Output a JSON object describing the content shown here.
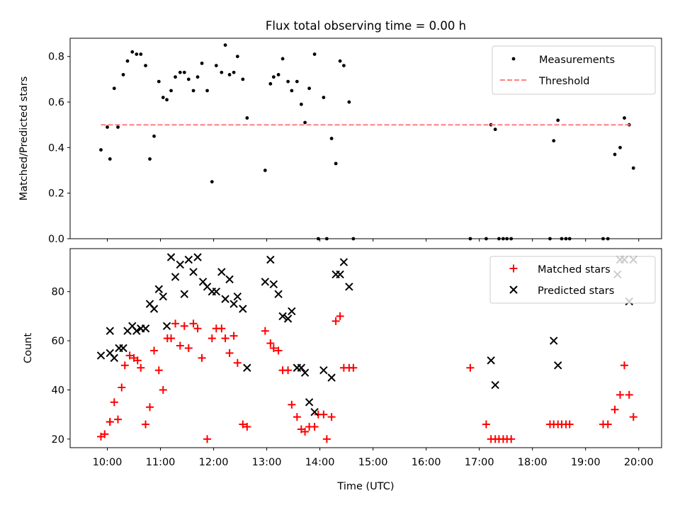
{
  "chart_data": [
    {
      "type": "scatter",
      "title": "Flux total observing time = 0.00 h",
      "ylabel": "Matched/Predicted stars",
      "xlabel": "",
      "ylim": [
        0,
        0.88
      ],
      "yticks": [
        0.0,
        0.2,
        0.4,
        0.6,
        0.8
      ],
      "ytick_labels": [
        "0.0",
        "0.2",
        "0.4",
        "0.6",
        "0.8"
      ],
      "grid": false,
      "legend_position": "top-right",
      "colors": {
        "measurements": "#000000",
        "threshold": "#ff7f7f"
      },
      "series": [
        {
          "name": "Measurements",
          "x": [
            9.88,
            10.05,
            10.0,
            10.13,
            10.2,
            10.3,
            10.38,
            10.47,
            10.55,
            10.63,
            10.72,
            10.8,
            10.88,
            10.97,
            11.05,
            11.12,
            11.2,
            11.28,
            11.37,
            11.45,
            11.53,
            11.62,
            11.7,
            11.78,
            11.88,
            11.97,
            12.05,
            12.15,
            12.22,
            12.3,
            12.38,
            12.45,
            12.55,
            12.63,
            12.97,
            13.07,
            13.13,
            13.22,
            13.3,
            13.4,
            13.47,
            13.57,
            13.65,
            13.72,
            13.8,
            13.9,
            13.97,
            14.07,
            14.13,
            14.22,
            14.3,
            14.38,
            14.45,
            14.55,
            14.63,
            16.83,
            17.13,
            17.22,
            17.3,
            17.37,
            17.45,
            17.52,
            17.6,
            18.33,
            18.4,
            18.48,
            18.55,
            18.63,
            18.7,
            19.33,
            19.42,
            19.55,
            19.65,
            19.73,
            19.82,
            19.9
          ],
          "y": [
            0.39,
            0.35,
            0.49,
            0.66,
            0.49,
            0.72,
            0.78,
            0.82,
            0.81,
            0.81,
            0.76,
            0.35,
            0.45,
            0.69,
            0.62,
            0.61,
            0.65,
            0.71,
            0.73,
            0.73,
            0.7,
            0.65,
            0.71,
            0.77,
            0.65,
            0.25,
            0.76,
            0.73,
            0.85,
            0.72,
            0.73,
            0.8,
            0.7,
            0.53,
            0.3,
            0.68,
            0.71,
            0.72,
            0.79,
            0.69,
            0.65,
            0.69,
            0.59,
            0.51,
            0.66,
            0.81,
            0.0,
            0.62,
            0.0,
            0.44,
            0.33,
            0.78,
            0.76,
            0.6,
            0.0,
            0.0,
            0.0,
            0.5,
            0.48,
            0.0,
            0.0,
            0.0,
            0.0,
            0.0,
            0.43,
            0.52,
            0.0,
            0.0,
            0.0,
            0.0,
            0.0,
            0.37,
            0.4,
            0.53,
            0.5,
            0.31
          ]
        },
        {
          "name": "Threshold",
          "style": "dashed",
          "x": [
            9.88,
            19.88
          ],
          "y": [
            0.5,
            0.5
          ]
        }
      ]
    },
    {
      "type": "scatter",
      "title": "",
      "xlabel": "Time (UTC)",
      "ylabel": "Count",
      "xlim": [
        9.3,
        20.43
      ],
      "ylim": [
        16.5,
        97.5
      ],
      "yticks": [
        20,
        40,
        60,
        80
      ],
      "ytick_labels": [
        "20",
        "40",
        "60",
        "80"
      ],
      "xticks": [
        10,
        11,
        12,
        13,
        14,
        15,
        16,
        17,
        18,
        19,
        20
      ],
      "xtick_labels": [
        "10:00",
        "11:00",
        "12:00",
        "13:00",
        "14:00",
        "15:00",
        "16:00",
        "17:00",
        "18:00",
        "19:00",
        "20:00"
      ],
      "grid": false,
      "legend_position": "top-right",
      "colors": {
        "matched": "#ff0000",
        "predicted": "#000000"
      },
      "series": [
        {
          "name": "Matched stars",
          "marker": "plus",
          "x": [
            9.88,
            9.95,
            10.05,
            10.05,
            10.13,
            10.2,
            10.27,
            10.33,
            10.42,
            10.5,
            10.57,
            10.63,
            10.72,
            10.8,
            10.88,
            10.97,
            11.05,
            11.13,
            11.2,
            11.28,
            11.37,
            11.45,
            11.53,
            11.62,
            11.7,
            11.78,
            11.88,
            11.97,
            12.05,
            12.15,
            12.22,
            12.3,
            12.38,
            12.45,
            12.55,
            12.63,
            12.97,
            13.07,
            13.13,
            13.22,
            13.3,
            13.4,
            13.47,
            13.57,
            13.65,
            13.72,
            13.8,
            13.9,
            13.97,
            14.07,
            14.13,
            14.22,
            14.3,
            14.38,
            14.45,
            14.55,
            14.63,
            16.83,
            17.13,
            17.22,
            17.3,
            17.37,
            17.45,
            17.52,
            17.6,
            18.33,
            18.4,
            18.48,
            18.55,
            18.63,
            18.7,
            19.33,
            19.42,
            19.55,
            19.65,
            19.73,
            19.82,
            19.9
          ],
          "y": [
            21,
            22,
            27,
            27,
            35,
            28,
            41,
            50,
            54,
            53,
            52,
            49,
            26,
            33,
            56,
            48,
            40,
            61,
            61,
            67,
            58,
            66,
            57,
            67,
            65,
            53,
            20,
            61,
            65,
            65,
            61,
            55,
            62,
            51,
            26,
            25,
            64,
            59,
            57,
            56,
            48,
            48,
            34,
            29,
            24,
            23,
            25,
            25,
            30,
            30,
            20,
            29,
            68,
            70,
            49,
            49,
            49,
            49,
            26,
            20,
            20,
            20,
            20,
            20,
            20,
            26,
            26,
            26,
            26,
            26,
            26,
            26,
            26,
            32,
            38,
            50,
            38,
            29
          ]
        },
        {
          "name": "Predicted stars",
          "marker": "x",
          "x": [
            9.88,
            10.05,
            10.05,
            10.13,
            10.22,
            10.3,
            10.38,
            10.47,
            10.55,
            10.63,
            10.72,
            10.8,
            10.88,
            10.97,
            11.05,
            11.12,
            11.2,
            11.28,
            11.37,
            11.45,
            11.53,
            11.62,
            11.7,
            11.8,
            11.88,
            11.97,
            12.05,
            12.15,
            12.22,
            12.3,
            12.38,
            12.45,
            12.55,
            12.63,
            12.97,
            13.07,
            13.13,
            13.22,
            13.3,
            13.4,
            13.47,
            13.57,
            13.65,
            13.72,
            13.8,
            13.9,
            14.07,
            14.22,
            14.3,
            14.38,
            14.45,
            14.55,
            17.22,
            17.3,
            18.4,
            18.48,
            19.6,
            19.65,
            19.73,
            19.82,
            19.9
          ],
          "y": [
            54,
            64,
            55,
            53,
            57,
            57,
            64,
            66,
            64,
            65,
            65,
            75,
            73,
            81,
            78,
            66,
            94,
            86,
            91,
            79,
            93,
            88,
            94,
            84,
            82,
            80,
            80,
            88,
            77,
            85,
            75,
            78,
            73,
            49,
            84,
            93,
            83,
            79,
            70,
            69,
            72,
            49,
            49,
            47,
            35,
            31,
            48,
            45,
            87,
            87,
            92,
            82,
            52,
            42,
            60,
            50,
            87,
            93,
            93,
            76,
            93
          ]
        }
      ]
    }
  ]
}
